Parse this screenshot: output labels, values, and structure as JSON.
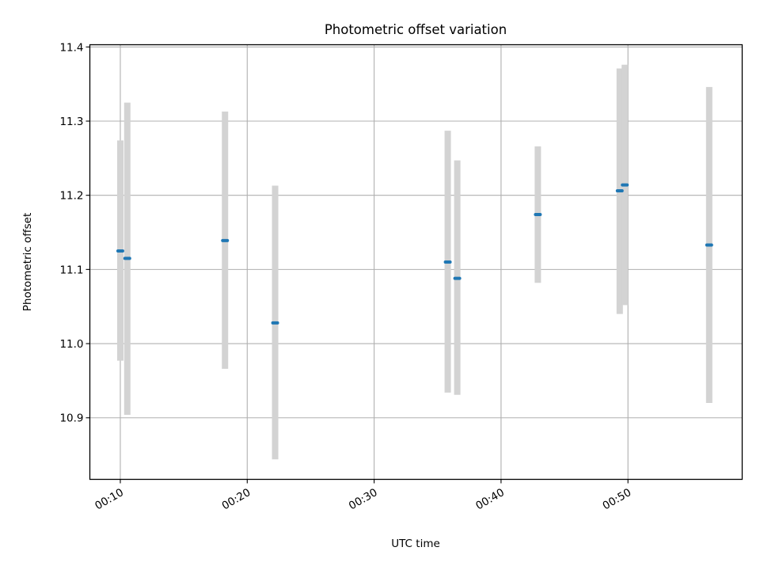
{
  "chart_data": {
    "type": "scatter",
    "title": "Photometric offset variation",
    "xlabel": "UTC time",
    "ylabel": "Photometric offset",
    "x_unit": "minutes after 00:00 UTC",
    "xlim": [
      7.6,
      59.0
    ],
    "ylim": [
      10.817,
      11.403
    ],
    "x_ticks": [
      {
        "value": 10,
        "label": "00:10"
      },
      {
        "value": 20,
        "label": "00:20"
      },
      {
        "value": 30,
        "label": "00:30"
      },
      {
        "value": 40,
        "label": "00:40"
      },
      {
        "value": 50,
        "label": "00:50"
      }
    ],
    "y_ticks": [
      {
        "value": 10.9,
        "label": "10.9"
      },
      {
        "value": 11.0,
        "label": "11.0"
      },
      {
        "value": 11.1,
        "label": "11.1"
      },
      {
        "value": 11.2,
        "label": "11.2"
      },
      {
        "value": 11.3,
        "label": "11.3"
      },
      {
        "value": 11.4,
        "label": "11.4"
      }
    ],
    "grid": true,
    "legend": null,
    "colors": {
      "marker": "#1f77b4",
      "errorbar": "#d3d3d3",
      "grid": "#b0b0b0"
    },
    "points": [
      {
        "x": 10.0,
        "y": 11.125,
        "ylow": 10.977,
        "yhigh": 11.274
      },
      {
        "x": 10.55,
        "y": 11.115,
        "ylow": 10.904,
        "yhigh": 11.325
      },
      {
        "x": 18.25,
        "y": 11.139,
        "ylow": 10.966,
        "yhigh": 11.313
      },
      {
        "x": 22.2,
        "y": 11.028,
        "ylow": 10.844,
        "yhigh": 11.213
      },
      {
        "x": 35.8,
        "y": 11.11,
        "ylow": 10.934,
        "yhigh": 11.287
      },
      {
        "x": 36.55,
        "y": 11.088,
        "ylow": 10.931,
        "yhigh": 11.247
      },
      {
        "x": 42.9,
        "y": 11.174,
        "ylow": 11.082,
        "yhigh": 11.266
      },
      {
        "x": 49.35,
        "y": 11.206,
        "ylow": 11.04,
        "yhigh": 11.371
      },
      {
        "x": 49.75,
        "y": 11.214,
        "ylow": 11.052,
        "yhigh": 11.376
      },
      {
        "x": 56.4,
        "y": 11.133,
        "ylow": 10.92,
        "yhigh": 11.346
      }
    ]
  }
}
